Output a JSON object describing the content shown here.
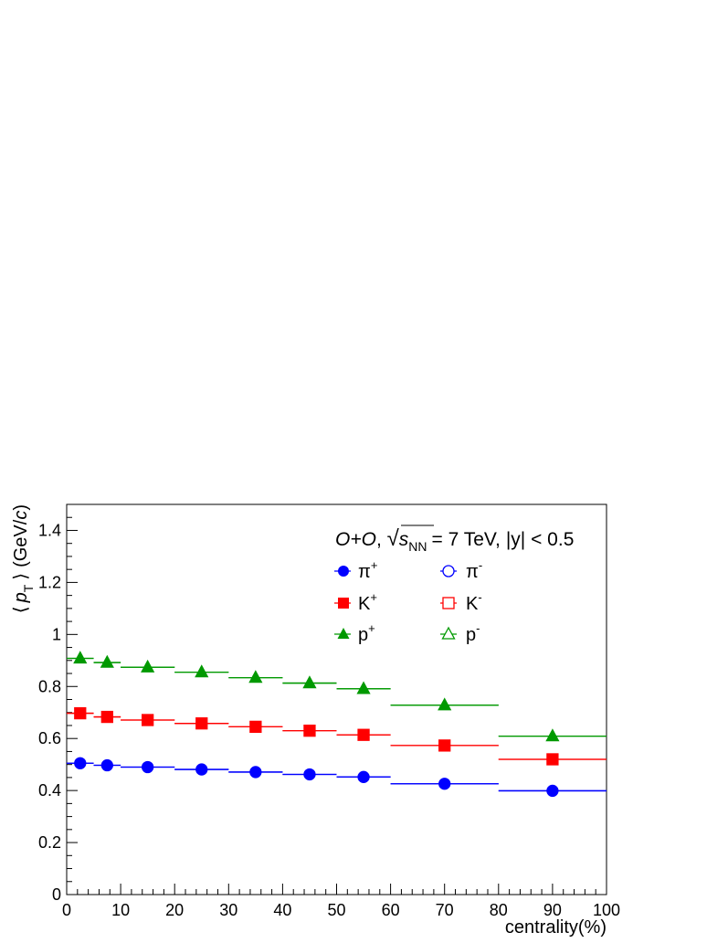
{
  "chart_data": {
    "type": "scatter",
    "title": "",
    "annotation": {
      "system": "O+O",
      "energy_prefix": "√",
      "s_symbol": "s",
      "s_subscript": "NN",
      "energy_value": "= 7 TeV,",
      "rapidity": "|y| < 0.5"
    },
    "xlabel": "centrality(%)",
    "ylabel": {
      "open": "⟨",
      "p": "p",
      "sub": "T",
      "close": "⟩",
      "unit_open": "(GeV/",
      "unit_c": "c",
      "unit_close": ")"
    },
    "xlim": [
      0,
      100
    ],
    "ylim": [
      0,
      1.5
    ],
    "x_ticks": [
      0,
      10,
      20,
      30,
      40,
      50,
      60,
      70,
      80,
      90,
      100
    ],
    "x_tick_labels": [
      "0",
      "10",
      "20",
      "30",
      "40",
      "50",
      "60",
      "70",
      "80",
      "90",
      "100"
    ],
    "y_ticks": [
      0,
      0.2,
      0.4,
      0.6,
      0.8,
      1.0,
      1.2,
      1.4
    ],
    "y_tick_labels": [
      "0",
      "0.2",
      "0.4",
      "0.6",
      "0.8",
      "1",
      "1.2",
      "1.4"
    ],
    "grid": false,
    "legend_position": "top-right",
    "bins": [
      [
        0,
        5
      ],
      [
        5,
        10
      ],
      [
        10,
        20
      ],
      [
        20,
        30
      ],
      [
        30,
        40
      ],
      [
        40,
        50
      ],
      [
        50,
        60
      ],
      [
        60,
        80
      ],
      [
        80,
        100
      ]
    ],
    "x": [
      2.5,
      7.5,
      15,
      25,
      35,
      45,
      55,
      70,
      90
    ],
    "series": [
      {
        "name": "π",
        "charge": "+",
        "marker": "circle-filled",
        "color": "#0000ff",
        "values": [
          0.505,
          0.497,
          0.49,
          0.481,
          0.471,
          0.462,
          0.452,
          0.426,
          0.399
        ]
      },
      {
        "name": "π",
        "charge": "-",
        "marker": "circle-open",
        "color": "#0000ff",
        "values": [
          0.505,
          0.497,
          0.49,
          0.481,
          0.471,
          0.462,
          0.452,
          0.426,
          0.399
        ]
      },
      {
        "name": "K",
        "charge": "+",
        "marker": "square-filled",
        "color": "#ff0000",
        "values": [
          0.697,
          0.683,
          0.671,
          0.658,
          0.645,
          0.63,
          0.614,
          0.573,
          0.52
        ]
      },
      {
        "name": "K",
        "charge": "-",
        "marker": "square-open",
        "color": "#ff0000",
        "values": [
          0.697,
          0.683,
          0.671,
          0.658,
          0.645,
          0.63,
          0.614,
          0.573,
          0.52
        ]
      },
      {
        "name": "p",
        "charge": "+",
        "marker": "triangle-filled",
        "color": "#009900",
        "values": [
          0.908,
          0.892,
          0.874,
          0.855,
          0.834,
          0.813,
          0.791,
          0.728,
          0.609
        ]
      },
      {
        "name": "p",
        "charge": "-",
        "marker": "triangle-open",
        "color": "#009900",
        "values": [
          0.908,
          0.892,
          0.874,
          0.855,
          0.834,
          0.813,
          0.791,
          0.728,
          0.609
        ]
      }
    ]
  }
}
